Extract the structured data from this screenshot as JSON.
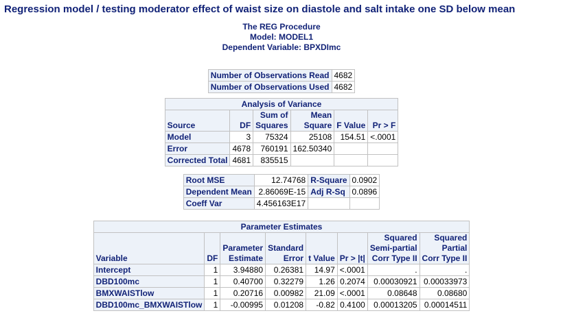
{
  "title": "Regression model / testing moderator effect of waist size on diastole and salt intake one SD below mean",
  "header": {
    "procedure": "The REG Procedure",
    "model": "Model: MODEL1",
    "dependent": "Dependent Variable: BPXDImc"
  },
  "observations": [
    {
      "label": "Number of Observations Read",
      "value": "4682"
    },
    {
      "label": "Number of Observations Used",
      "value": "4682"
    }
  ],
  "anova": {
    "caption": "Analysis of Variance",
    "headers": {
      "source": "Source",
      "df": "DF",
      "ss_1": "Sum of",
      "ss_2": "Squares",
      "ms_1": "Mean",
      "ms_2": "Square",
      "f": "F Value",
      "p": "Pr > F"
    },
    "rows": [
      {
        "source": "Model",
        "df": "3",
        "ss": "75324",
        "ms": "25108",
        "f": "154.51",
        "p": "<.0001"
      },
      {
        "source": "Error",
        "df": "4678",
        "ss": "760191",
        "ms": "162.50340",
        "f": "",
        "p": ""
      },
      {
        "source": "Corrected Total",
        "df": "4681",
        "ss": "835515",
        "ms": "",
        "f": "",
        "p": ""
      }
    ]
  },
  "fit": {
    "rows": [
      {
        "label1": "Root MSE",
        "value1": "12.74768",
        "label2": "R-Square",
        "value2": "0.0902"
      },
      {
        "label1": "Dependent Mean",
        "value1": "2.86069E-15",
        "label2": "Adj R-Sq",
        "value2": "0.0896"
      },
      {
        "label1": "Coeff Var",
        "value1": "4.456163E17",
        "label2": "",
        "value2": ""
      }
    ]
  },
  "params": {
    "caption": "Parameter Estimates",
    "headers": {
      "variable": "Variable",
      "df": "DF",
      "est_1": "Parameter",
      "est_2": "Estimate",
      "se_1": "Standard",
      "se_2": "Error",
      "t": "t Value",
      "p": "Pr > |t|",
      "semi_1": "Squared",
      "semi_2": "Semi-partial",
      "semi_3": "Corr Type II",
      "part_1": "Squared",
      "part_2": "Partial",
      "part_3": "Corr Type II"
    },
    "rows": [
      {
        "variable": "Intercept",
        "df": "1",
        "est": "3.94880",
        "se": "0.26381",
        "t": "14.97",
        "p": "<.0001",
        "semi": ".",
        "part": "."
      },
      {
        "variable": "DBD100mc",
        "df": "1",
        "est": "0.40700",
        "se": "0.32279",
        "t": "1.26",
        "p": "0.2074",
        "semi": "0.00030921",
        "part": "0.00033973"
      },
      {
        "variable": "BMXWAISTlow",
        "df": "1",
        "est": "0.20716",
        "se": "0.00982",
        "t": "21.09",
        "p": "<.0001",
        "semi": "0.08648",
        "part": "0.08680"
      },
      {
        "variable": "DBD100mc_BMXWAISTlow",
        "df": "1",
        "est": "-0.00995",
        "se": "0.01208",
        "t": "-0.82",
        "p": "0.4100",
        "semi": "0.00013205",
        "part": "0.00014511"
      }
    ]
  }
}
